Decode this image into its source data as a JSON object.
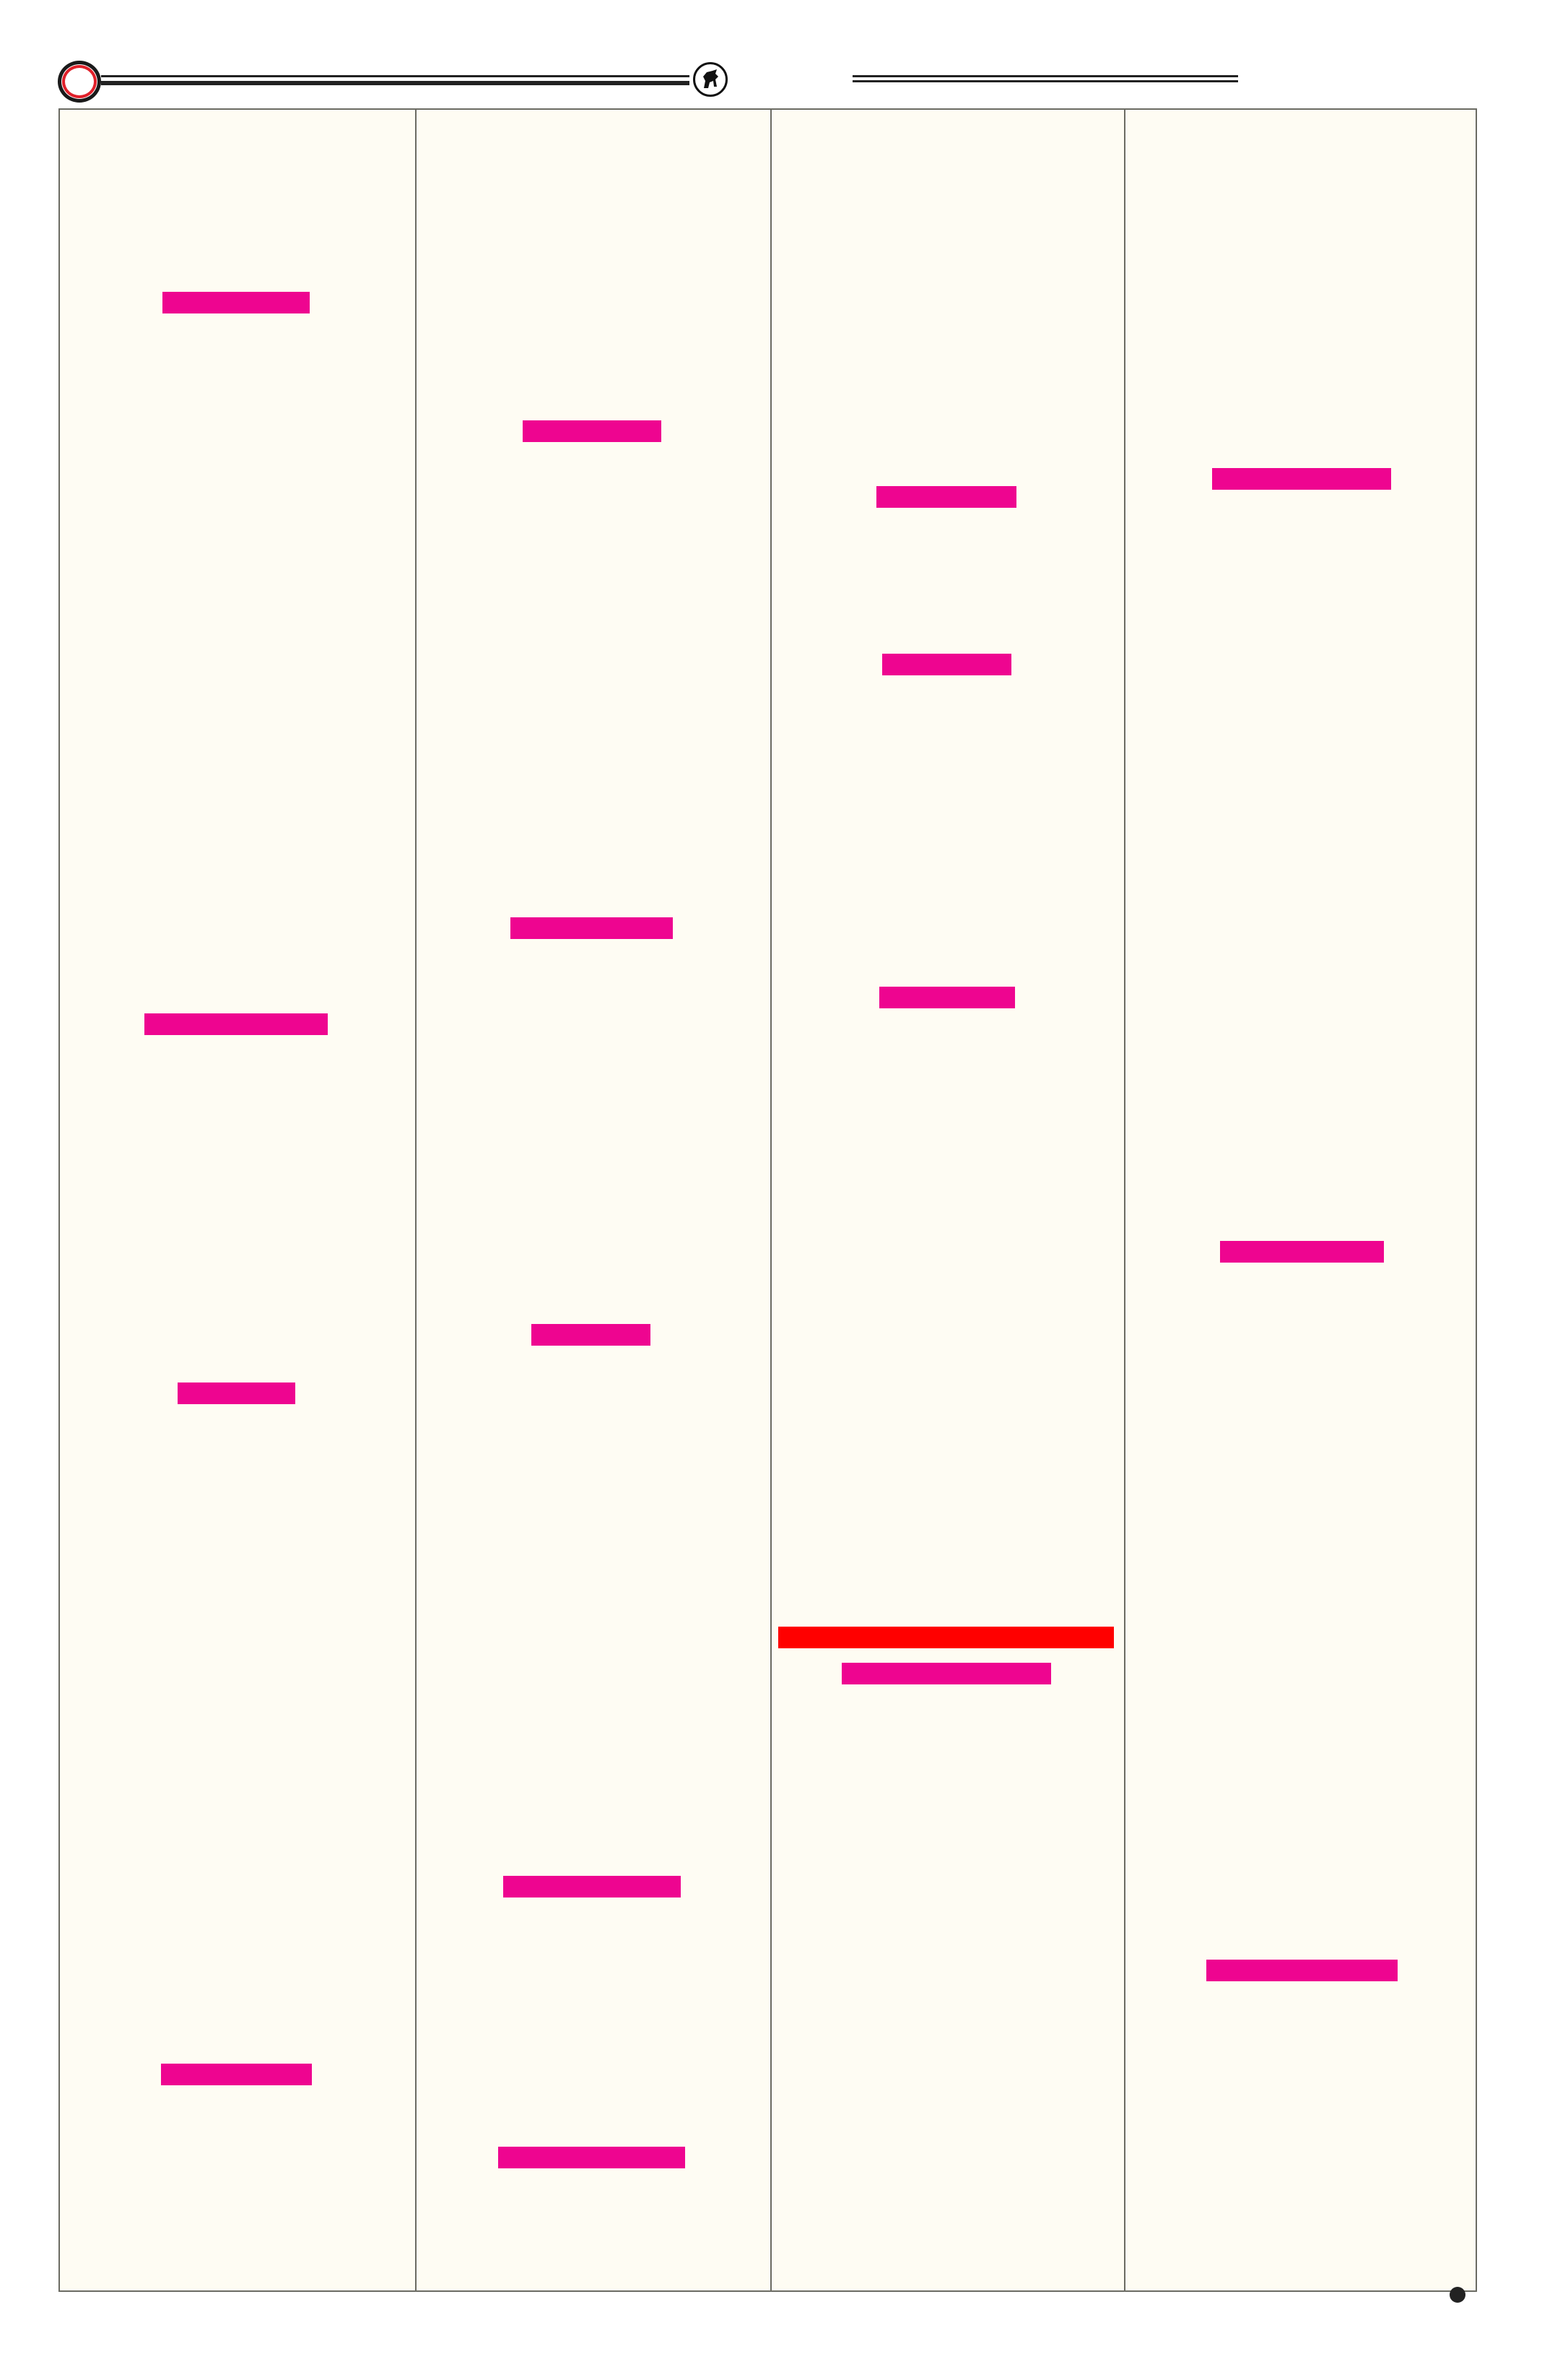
{
  "colors": {
    "page_background": "#fefcf3",
    "border": "#6b6b63",
    "redaction": "#ee0590",
    "redaction_alert": "#ff0000",
    "header_ring": "#e0202a"
  },
  "header": {
    "logo_icon": "bull-icon",
    "ring_icon": "ring-icon"
  },
  "columns": [
    {
      "redactions": 4
    },
    {
      "redactions": 5
    },
    {
      "redactions": 5
    },
    {
      "redactions": 3
    }
  ]
}
